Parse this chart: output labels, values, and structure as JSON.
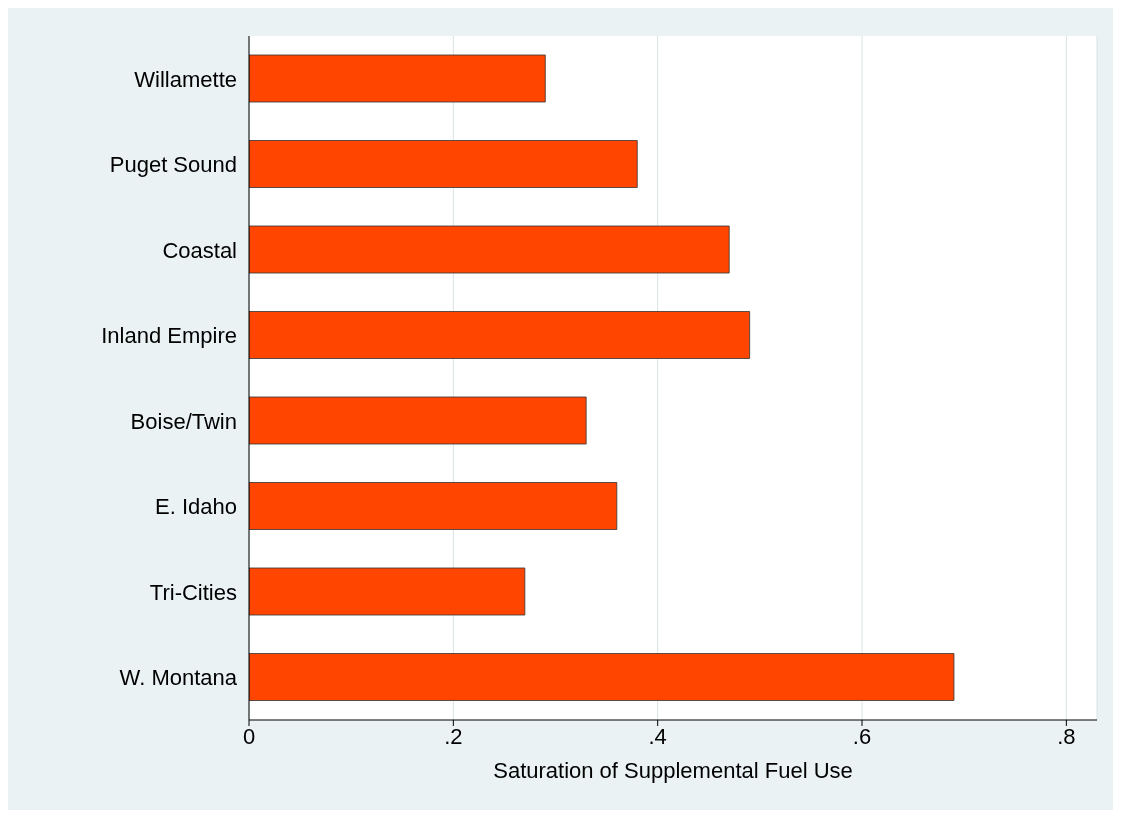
{
  "chart_data": {
    "type": "bar",
    "orientation": "horizontal",
    "xlabel": "Saturation of Supplemental Fuel Use",
    "categories": [
      "Willamette",
      "Puget Sound",
      "Coastal",
      "Inland Empire",
      "Boise/Twin",
      "E. Idaho",
      "Tri-Cities",
      "W. Montana"
    ],
    "values": [
      0.29,
      0.38,
      0.47,
      0.49,
      0.33,
      0.36,
      0.27,
      0.69
    ],
    "color": "#ff4500",
    "xlim": [
      0,
      0.83
    ],
    "xticks": [
      0,
      {
        "value": 0.2,
        "label": ".2"
      },
      {
        "value": 0.4,
        "label": ".4"
      },
      {
        "value": 0.6,
        "label": ".6"
      },
      {
        "value": 0.8,
        "label": ".8"
      }
    ],
    "grid": "x"
  }
}
